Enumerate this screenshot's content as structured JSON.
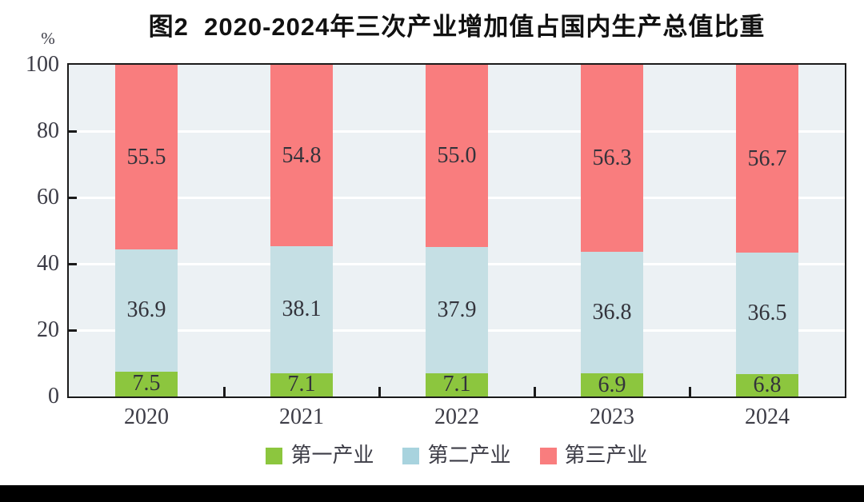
{
  "chart_data": {
    "type": "bar",
    "stacked": true,
    "title": "图2  2020-2024年三次产业增加值占国内生产总值比重",
    "unit_label": "%",
    "categories": [
      "2020",
      "2021",
      "2022",
      "2023",
      "2024"
    ],
    "series": [
      {
        "name": "第一产业",
        "color": "#8cc63e",
        "legend_color": "#8cc63e",
        "values": [
          7.5,
          7.1,
          7.1,
          6.9,
          6.8
        ]
      },
      {
        "name": "第二产业",
        "color": "#c5dfe4",
        "legend_color": "#a8d3de",
        "values": [
          36.9,
          38.1,
          37.9,
          36.8,
          36.5
        ]
      },
      {
        "name": "第三产业",
        "color": "#f97d7e",
        "legend_color": "#f97d7e",
        "values": [
          55.5,
          54.8,
          55.0,
          56.3,
          56.7
        ]
      }
    ],
    "ylim": [
      0,
      100
    ],
    "yticks": [
      0,
      20,
      40,
      60,
      80,
      100
    ],
    "grid": true,
    "grid_color": "#ffffff",
    "plot_bg": "#ecf1f4",
    "axis_color": "#1a1a1a",
    "label_color": "#33333b",
    "legend_position": "bottom"
  }
}
